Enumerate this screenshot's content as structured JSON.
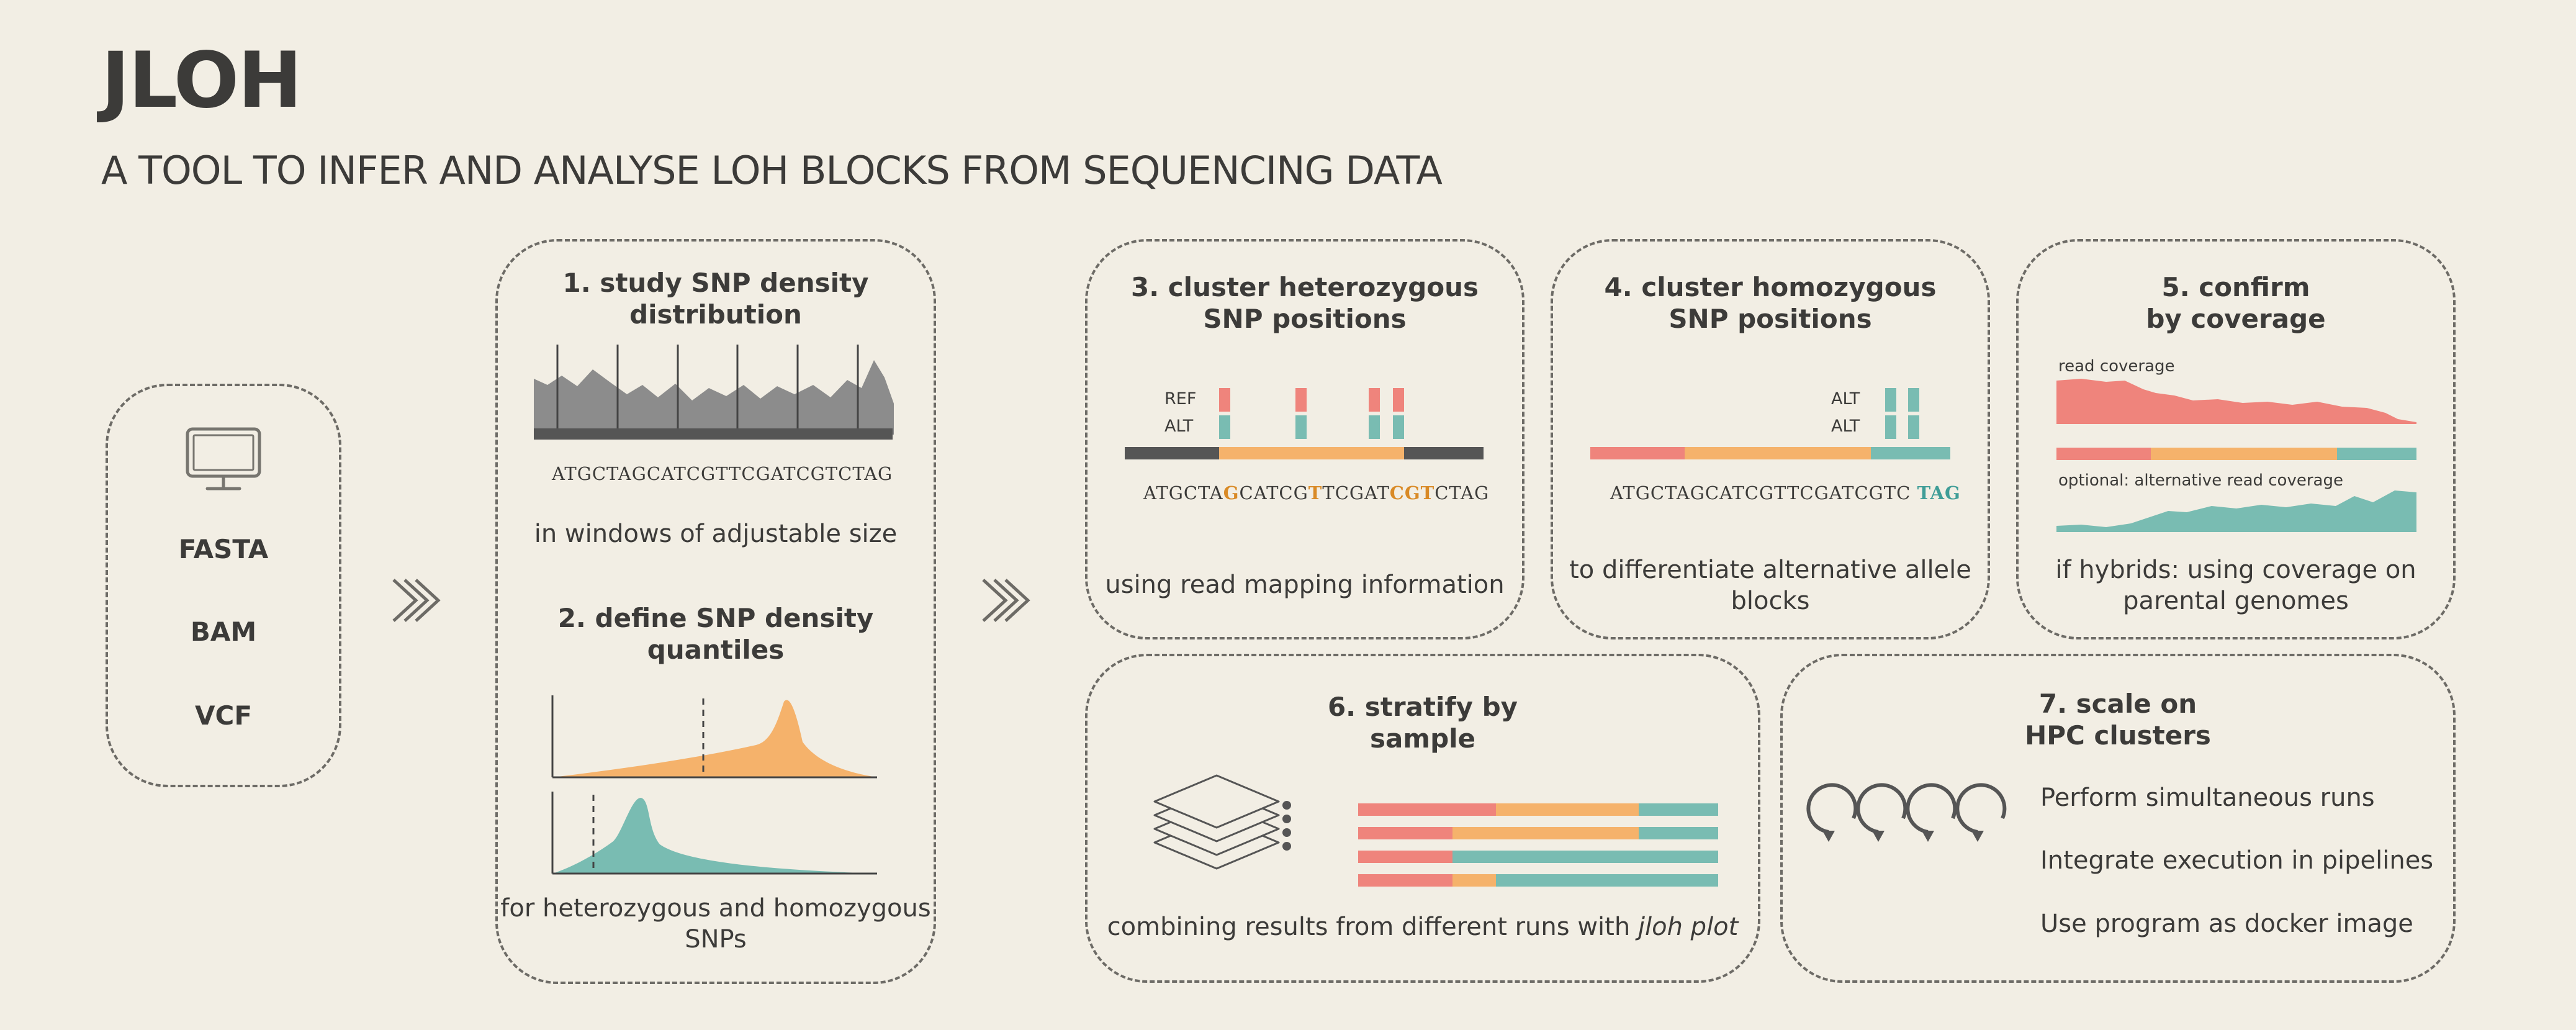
{
  "title": "JLOH",
  "subtitle": "A TOOL TO INFER AND ANALYSE LOH BLOCKS FROM SEQUENCING DATA",
  "colors": {
    "background": "#f2eee4",
    "text": "#3c3b39",
    "red": "#ef847c",
    "orange": "#f5b26b",
    "teal": "#79bcb2",
    "dark": "#555555",
    "grey": "#8c8c8c",
    "sequence_highlight": "#d98a26",
    "tag_highlight": "#3f9d97"
  },
  "inputs": {
    "icon": "computer-monitor-icon",
    "formats": [
      "FASTA",
      "BAM",
      "VCF"
    ]
  },
  "arrow_icon": "double-chevron-right-icon",
  "step1": {
    "heading_lines": [
      "1. study SNP density",
      "distribution"
    ],
    "sequence": "ATGCTAGCATCGTTCGATCGTCTAG",
    "caption": "in windows of adjustable size"
  },
  "step2": {
    "heading_lines": [
      "2. define SNP density",
      "quantiles"
    ],
    "caption_lines": [
      "for heterozygous and homozygous",
      "SNPs"
    ]
  },
  "step3": {
    "heading_lines": [
      "3. cluster heterozygous",
      "SNP positions"
    ],
    "ref_label": "REF",
    "alt_label": "ALT",
    "sequence_parts": [
      "ATGCTA",
      "G",
      "CATCG",
      "T",
      "TCGAT",
      "CGT",
      "CTAG"
    ],
    "caption": "using read mapping information"
  },
  "step4": {
    "heading_lines": [
      "4. cluster homozygous",
      "SNP positions"
    ],
    "alt_label_1": "ALT",
    "alt_label_2": "ALT",
    "sequence": "ATGCTAGCATCGTTCGATCGTC",
    "sequence_tag": "TAG",
    "caption_lines": [
      "to differentiate alternative allele",
      "blocks"
    ]
  },
  "step5": {
    "heading_lines": [
      "5. confirm",
      "by coverage"
    ],
    "read_coverage_label": "read coverage",
    "alt_coverage_label": "optional: alternative read coverage",
    "caption_lines": [
      "if hybrids: using coverage on",
      "parental genomes"
    ]
  },
  "step6": {
    "heading_lines": [
      "6. stratify by",
      "sample"
    ],
    "icon": "stacked-layers-icon",
    "caption": "combining results from different runs with",
    "caption_italic": "jloh plot"
  },
  "step7": {
    "heading_lines": [
      "7. scale on",
      "HPC clusters"
    ],
    "icon": "loop-arrows-icon",
    "items": [
      "Perform simultaneous runs",
      "Integrate execution in pipelines",
      "Use program as docker image"
    ]
  }
}
